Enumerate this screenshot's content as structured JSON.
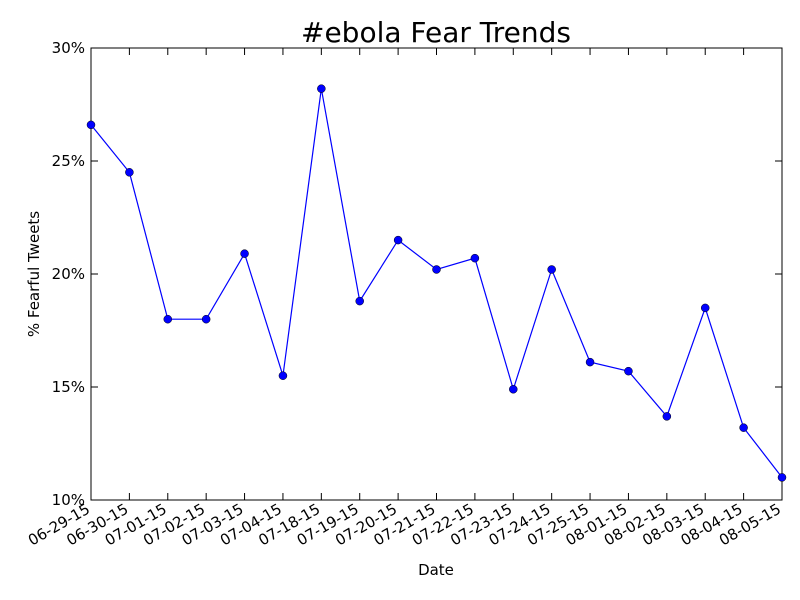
{
  "chart_data": {
    "type": "line",
    "title": "#ebola Fear Trends",
    "xlabel": "Date",
    "ylabel": "% Fearful Tweets",
    "categories": [
      "06-29-15",
      "06-30-15",
      "07-01-15",
      "07-02-15",
      "07-03-15",
      "07-04-15",
      "07-18-15",
      "07-19-15",
      "07-20-15",
      "07-21-15",
      "07-22-15",
      "07-23-15",
      "07-24-15",
      "07-25-15",
      "08-01-15",
      "08-02-15",
      "08-03-15",
      "08-04-15",
      "08-05-15"
    ],
    "series": [
      {
        "values": [
          26.6,
          24.5,
          18.0,
          18.0,
          20.9,
          15.5,
          28.2,
          18.8,
          21.5,
          20.2,
          20.7,
          14.9,
          20.2,
          16.1,
          15.7,
          13.7,
          18.5,
          13.2,
          11.0
        ],
        "color": "#0000ff"
      }
    ],
    "ylim": [
      10,
      30
    ],
    "yticks": [
      10,
      15,
      20,
      25,
      30
    ],
    "ytick_labels": [
      "10%",
      "15%",
      "20%",
      "25%",
      "30%"
    ],
    "grid": false,
    "legend": "none"
  }
}
